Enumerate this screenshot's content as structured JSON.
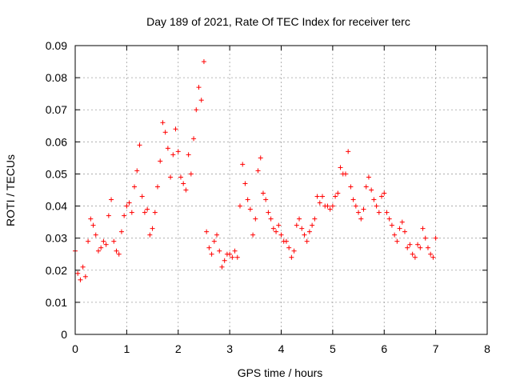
{
  "chart_data": {
    "type": "scatter",
    "title": "Day 189 of 2021, Rate Of TEC Index for receiver terc",
    "xlabel": "GPS time / hours",
    "ylabel": "ROTI / TECUs",
    "xlim": [
      0,
      8
    ],
    "ylim": [
      0,
      0.09
    ],
    "xticks": [
      "0",
      "1",
      "2",
      "3",
      "4",
      "5",
      "6",
      "7",
      "8"
    ],
    "yticks": [
      "0",
      "0.01",
      "0.02",
      "0.03",
      "0.04",
      "0.05",
      "0.06",
      "0.07",
      "0.08",
      "0.09"
    ],
    "xtick_values": [
      0,
      1,
      2,
      3,
      4,
      5,
      6,
      7,
      8
    ],
    "ytick_values": [
      0,
      0.01,
      0.02,
      0.03,
      0.04,
      0.05,
      0.06,
      0.07,
      0.08,
      0.09
    ],
    "grid": true,
    "marker": "+",
    "color": "#ff0000",
    "series": [
      {
        "x": [
          0.0,
          0.05,
          0.1,
          0.15,
          0.2,
          0.25,
          0.3,
          0.35,
          0.4,
          0.45,
          0.5,
          0.55,
          0.6,
          0.65,
          0.7,
          0.75,
          0.8,
          0.85,
          0.9,
          0.95,
          1.0,
          1.05,
          1.1,
          1.15,
          1.2,
          1.25,
          1.3,
          1.35,
          1.4,
          1.45,
          1.5,
          1.55,
          1.6,
          1.65,
          1.7,
          1.75,
          1.8,
          1.85,
          1.9,
          1.95,
          2.0,
          2.05,
          2.1,
          2.15,
          2.2,
          2.25,
          2.3,
          2.35,
          2.4,
          2.45,
          2.5,
          2.55,
          2.6,
          2.65,
          2.7,
          2.75,
          2.8,
          2.85,
          2.9,
          2.95,
          3.0,
          3.05,
          3.1,
          3.15,
          3.2,
          3.25,
          3.3,
          3.35,
          3.4,
          3.45,
          3.5,
          3.55,
          3.6,
          3.65,
          3.7,
          3.75,
          3.8,
          3.85,
          3.9,
          3.95,
          4.0,
          4.05,
          4.1,
          4.15,
          4.2,
          4.25,
          4.3,
          4.35,
          4.4,
          4.45,
          4.5,
          4.55,
          4.6,
          4.65,
          4.7,
          4.75,
          4.8,
          4.85,
          4.9,
          4.95,
          5.0,
          5.05,
          5.1,
          5.15,
          5.2,
          5.25,
          5.3,
          5.35,
          5.4,
          5.45,
          5.5,
          5.55,
          5.6,
          5.65,
          5.7,
          5.75,
          5.8,
          5.85,
          5.9,
          5.95,
          6.0,
          6.05,
          6.1,
          6.15,
          6.2,
          6.25,
          6.3,
          6.35,
          6.4,
          6.45,
          6.5,
          6.55,
          6.6,
          6.65,
          6.7,
          6.75,
          6.8,
          6.85,
          6.9,
          6.95,
          7.0
        ],
        "y": [
          0.026,
          0.019,
          0.017,
          0.021,
          0.018,
          0.029,
          0.036,
          0.034,
          0.031,
          0.026,
          0.027,
          0.029,
          0.028,
          0.037,
          0.042,
          0.029,
          0.026,
          0.025,
          0.032,
          0.037,
          0.04,
          0.041,
          0.038,
          0.046,
          0.051,
          0.059,
          0.043,
          0.038,
          0.039,
          0.031,
          0.033,
          0.038,
          0.046,
          0.054,
          0.066,
          0.063,
          0.058,
          0.049,
          0.056,
          0.064,
          0.057,
          0.049,
          0.047,
          0.045,
          0.056,
          0.05,
          0.061,
          0.07,
          0.077,
          0.073,
          0.085,
          0.032,
          0.027,
          0.025,
          0.029,
          0.031,
          0.026,
          0.021,
          0.023,
          0.025,
          0.025,
          0.024,
          0.026,
          0.024,
          0.04,
          0.053,
          0.047,
          0.042,
          0.039,
          0.031,
          0.036,
          0.051,
          0.055,
          0.044,
          0.042,
          0.038,
          0.036,
          0.033,
          0.032,
          0.034,
          0.031,
          0.029,
          0.029,
          0.027,
          0.024,
          0.026,
          0.034,
          0.036,
          0.033,
          0.031,
          0.029,
          0.032,
          0.034,
          0.036,
          0.043,
          0.041,
          0.043,
          0.04,
          0.04,
          0.039,
          0.04,
          0.043,
          0.044,
          0.052,
          0.05,
          0.05,
          0.057,
          0.046,
          0.042,
          0.04,
          0.038,
          0.036,
          0.039,
          0.046,
          0.049,
          0.045,
          0.042,
          0.04,
          0.038,
          0.043,
          0.044,
          0.038,
          0.036,
          0.034,
          0.031,
          0.029,
          0.033,
          0.035,
          0.032,
          0.027,
          0.028,
          0.025,
          0.024,
          0.028,
          0.027,
          0.033,
          0.03,
          0.027,
          0.025,
          0.024,
          0.03
        ]
      }
    ]
  }
}
